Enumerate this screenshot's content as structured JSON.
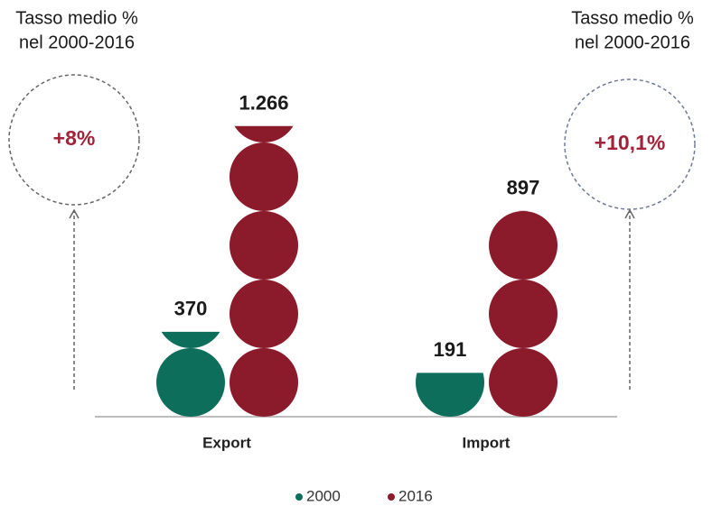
{
  "chart_data": {
    "type": "pictogram_bar",
    "categories": [
      "Export",
      "Import"
    ],
    "series": [
      {
        "name": "2000",
        "color": "#0e6e5c",
        "values": [
          370,
          191
        ]
      },
      {
        "name": "2016",
        "color": "#8b1a2b",
        "values": [
          1266,
          897
        ],
        "value_labels": [
          "1.266",
          "897"
        ]
      }
    ],
    "annotations": [
      {
        "lines": [
          "Tasso medio %",
          "nel 2000-2016"
        ],
        "text": "+8%"
      },
      {
        "lines": [
          "Tasso medio %",
          "nel 2000-2016"
        ],
        "text": "+10,1%"
      }
    ],
    "legend": "bottom"
  }
}
